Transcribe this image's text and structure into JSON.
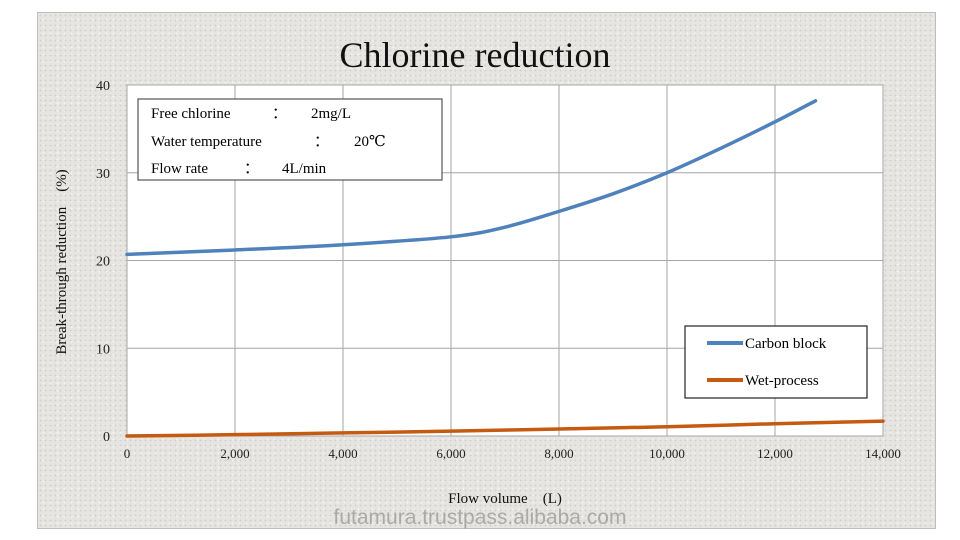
{
  "chart_data": {
    "type": "line",
    "title": "Chlorine reduction",
    "xlabel": "Flow volume　(L)",
    "ylabel": "Break-through reduction　(%)",
    "xlim": [
      0,
      14000
    ],
    "ylim": [
      0,
      40
    ],
    "xticks": [
      "0",
      "2,000",
      "4,000",
      "6,000",
      "8,000",
      "10,000",
      "12,000",
      "14,000"
    ],
    "yticks": [
      "0",
      "10",
      "20",
      "30",
      "40"
    ],
    "grid": true,
    "legend_position": "bottom-right",
    "conditions": [
      {
        "label": "Free chlorine",
        "sep": "：",
        "value": "2mg/L"
      },
      {
        "label": "Water temperature",
        "sep": "：",
        "value": "20℃"
      },
      {
        "label": "Flow rate",
        "sep": "：",
        "value": "4L/min"
      }
    ],
    "series": [
      {
        "name": "Carbon block",
        "color": "#4f81bd",
        "x": [
          0,
          2000,
          4000,
          6000,
          7000,
          8000,
          9000,
          10000,
          11000,
          12000,
          12750
        ],
        "y": [
          20.7,
          21.2,
          21.8,
          22.7,
          23.8,
          25.6,
          27.6,
          30.0,
          32.8,
          35.8,
          38.2
        ]
      },
      {
        "name": "Wet-process",
        "color": "#c55a11",
        "x": [
          0,
          2000,
          4000,
          6000,
          8000,
          10000,
          12000,
          14000
        ],
        "y": [
          0,
          0.15,
          0.35,
          0.55,
          0.8,
          1.05,
          1.4,
          1.7
        ]
      }
    ]
  },
  "watermark": "futamura.trustpass.alibaba.com"
}
